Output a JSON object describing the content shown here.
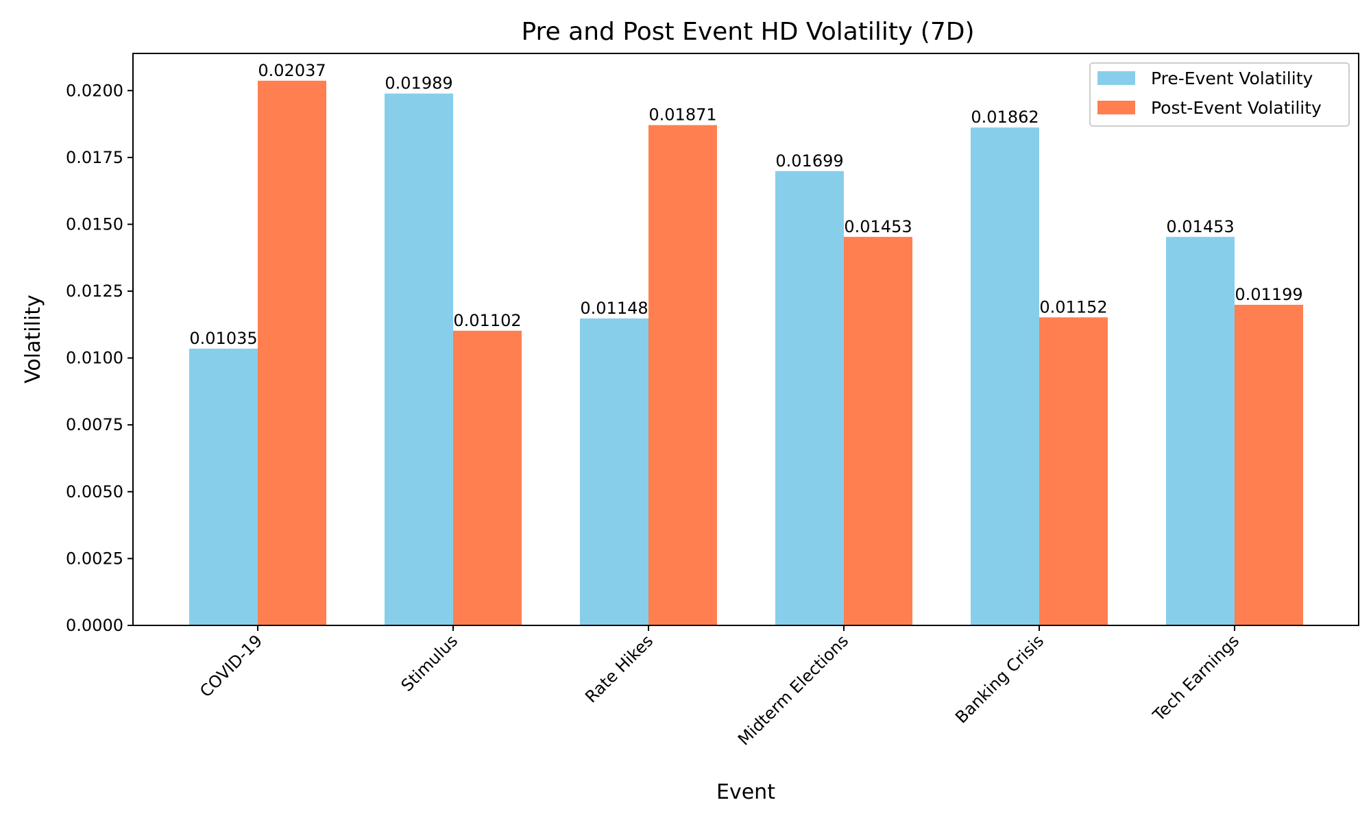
{
  "chart_data": {
    "type": "bar",
    "title": "Pre and Post Event HD Volatility (7D)",
    "xlabel": "Event",
    "ylabel": "Volatility",
    "categories": [
      "COVID-19",
      "Stimulus",
      "Rate Hikes",
      "Midterm Elections",
      "Banking Crisis",
      "Tech Earnings"
    ],
    "series": [
      {
        "name": "Pre-Event Volatility",
        "color": "#87CEEB",
        "values": [
          0.01035,
          0.01989,
          0.01148,
          0.01699,
          0.01862,
          0.01453
        ],
        "labels": [
          "0.01035",
          "0.01989",
          "0.01148",
          "0.01699",
          "0.01862",
          "0.01453"
        ]
      },
      {
        "name": "Post-Event Volatility",
        "color": "#FF7F50",
        "values": [
          0.02037,
          0.01102,
          0.01871,
          0.01453,
          0.01152,
          0.01199
        ],
        "labels": [
          "0.02037",
          "0.01102",
          "0.01871",
          "0.01453",
          "0.01152",
          "0.01199"
        ]
      }
    ],
    "yticks": [
      "0.0000",
      "0.0025",
      "0.0050",
      "0.0075",
      "0.0100",
      "0.0125",
      "0.0150",
      "0.0175",
      "0.0200"
    ],
    "ylim": [
      0,
      0.02139
    ],
    "grid": false,
    "legend": "top-right"
  }
}
